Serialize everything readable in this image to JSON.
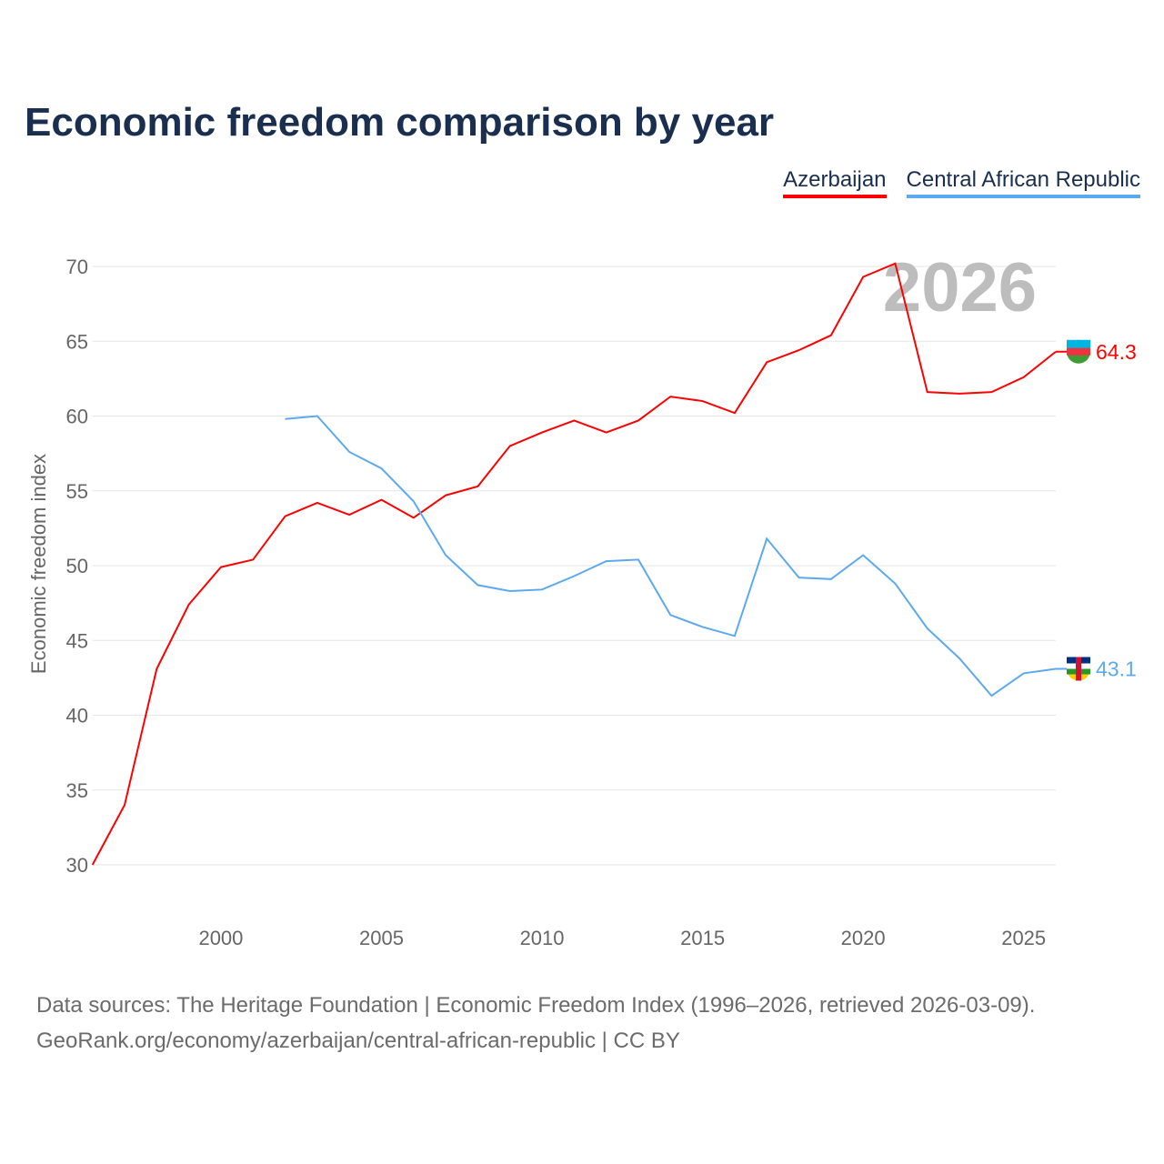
{
  "title": "Economic freedom comparison by year",
  "chart_data": {
    "type": "line",
    "title": "Economic freedom comparison by year",
    "xlabel": "",
    "ylabel": "Economic freedom index",
    "xlim": [
      1996,
      2026
    ],
    "ylim": [
      27,
      73
    ],
    "yticks": [
      30,
      35,
      40,
      45,
      50,
      55,
      60,
      65,
      70
    ],
    "xticks": [
      2000,
      2005,
      2010,
      2015,
      2020,
      2025
    ],
    "grid": true,
    "legend_position": "top-right",
    "watermark_year": "2026",
    "series": [
      {
        "name": "Azerbaijan",
        "color": "#ff0000",
        "end_label": "64.3",
        "x": [
          1996,
          1997,
          1998,
          1999,
          2000,
          2001,
          2002,
          2003,
          2004,
          2005,
          2006,
          2007,
          2008,
          2009,
          2010,
          2011,
          2012,
          2013,
          2014,
          2015,
          2016,
          2017,
          2018,
          2019,
          2020,
          2021,
          2022,
          2023,
          2024,
          2025,
          2026
        ],
        "values": [
          30.0,
          34.0,
          43.1,
          47.4,
          49.9,
          50.4,
          53.3,
          54.2,
          53.4,
          54.4,
          53.2,
          54.7,
          55.3,
          58.0,
          58.9,
          59.7,
          58.9,
          59.7,
          61.3,
          61.0,
          60.2,
          63.6,
          64.4,
          65.4,
          69.3,
          70.2,
          61.6,
          61.5,
          61.6,
          62.6,
          64.3
        ]
      },
      {
        "name": "Central African Republic",
        "color": "#5da9f0",
        "end_label": "43.1",
        "x": [
          2002,
          2003,
          2004,
          2005,
          2006,
          2007,
          2008,
          2009,
          2010,
          2011,
          2012,
          2013,
          2014,
          2015,
          2016,
          2017,
          2018,
          2019,
          2020,
          2021,
          2022,
          2023,
          2024,
          2025,
          2026
        ],
        "values": [
          59.8,
          60.0,
          57.6,
          56.5,
          54.3,
          50.7,
          48.7,
          48.3,
          48.4,
          49.3,
          50.3,
          50.4,
          46.7,
          45.9,
          45.3,
          51.8,
          49.2,
          49.1,
          50.7,
          48.8,
          45.8,
          43.8,
          41.3,
          42.8,
          43.1
        ]
      }
    ]
  },
  "footer": {
    "line1": "Data sources: The Heritage Foundation | Economic Freedom Index (1996–2026, retrieved 2026-03-09).",
    "line2": "GeoRank.org/economy/azerbaijan/central-african-republic | CC BY"
  }
}
